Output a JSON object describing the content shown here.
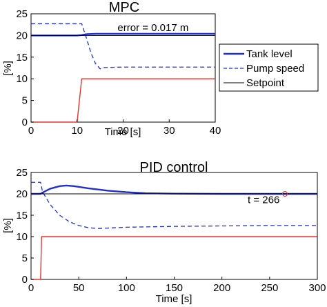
{
  "chart_data": [
    {
      "type": "line",
      "title": "MPC",
      "xlabel": "Time [s]",
      "ylabel": "[%]",
      "xlim": [
        0,
        40
      ],
      "ylim": [
        0,
        25
      ],
      "xticks": [
        "0",
        "10",
        "20",
        "30",
        "40"
      ],
      "yticks": [
        "0",
        "5",
        "10",
        "15",
        "20",
        "25"
      ],
      "grid": false,
      "legend": "right",
      "annotations": [
        {
          "text": "error = 0.017 m",
          "x": 26.5,
          "y": 21.0
        }
      ],
      "series": [
        {
          "name": "Tank level",
          "color": "#1f2fcc",
          "style": "solid-thick",
          "x": [
            0,
            10,
            11,
            12,
            14,
            20,
            30,
            40
          ],
          "y": [
            20,
            20,
            20.1,
            20.3,
            20.4,
            20.4,
            20.4,
            20.4
          ]
        },
        {
          "name": "Pump speed",
          "color": "#1f2fcc",
          "style": "dashed",
          "x": [
            0,
            11,
            12,
            13,
            14,
            15,
            16,
            20,
            30,
            40
          ],
          "y": [
            22.7,
            22.7,
            19.5,
            16.0,
            13.5,
            12.3,
            12.6,
            12.7,
            12.7,
            12.7
          ]
        },
        {
          "name": "Setpoint",
          "color": "#000000",
          "style": "solid-thin",
          "x": [
            0,
            40
          ],
          "y": [
            20,
            20
          ]
        },
        {
          "name": "",
          "color": "#e8302a",
          "style": "solid",
          "x": [
            0,
            10,
            11,
            40
          ],
          "y": [
            0,
            0,
            10,
            10
          ]
        }
      ]
    },
    {
      "type": "line",
      "title": "PID control",
      "xlabel": "Time [s]",
      "ylabel": "[%]",
      "xlim": [
        0,
        300
      ],
      "ylim": [
        0,
        25
      ],
      "xticks": [
        "0",
        "50",
        "100",
        "150",
        "200",
        "250",
        "300"
      ],
      "yticks": [
        "0",
        "5",
        "10",
        "15",
        "20",
        "25"
      ],
      "grid": false,
      "legend": "none",
      "annotations": [
        {
          "text": "t = 266",
          "x": 227,
          "y": 17.8,
          "marker_x": 266,
          "marker_y": 20.0
        }
      ],
      "series": [
        {
          "name": "Tank level",
          "color": "#1f2fcc",
          "style": "solid-thick",
          "x": [
            0,
            10,
            12,
            20,
            30,
            37,
            45,
            60,
            80,
            100,
            120,
            150,
            200,
            250,
            300
          ],
          "y": [
            20,
            20,
            20.3,
            21.2,
            21.8,
            21.95,
            21.8,
            21.3,
            20.75,
            20.4,
            20.15,
            20.05,
            20.0,
            20.0,
            20.0
          ]
        },
        {
          "name": "Pump speed",
          "color": "#1f2fcc",
          "style": "dashed",
          "x": [
            0,
            10,
            12,
            20,
            30,
            40,
            50,
            60,
            70,
            80,
            100,
            150,
            200,
            250,
            300
          ],
          "y": [
            22.7,
            22.7,
            20.5,
            17.5,
            15.0,
            13.5,
            12.6,
            12.1,
            11.9,
            12.0,
            12.2,
            12.4,
            12.5,
            12.6,
            12.6
          ]
        },
        {
          "name": "Setpoint",
          "color": "#000000",
          "style": "solid-thin",
          "x": [
            0,
            300
          ],
          "y": [
            20,
            20
          ]
        },
        {
          "name": "",
          "color": "#e8302a",
          "style": "solid",
          "x": [
            0,
            10,
            11,
            300
          ],
          "y": [
            0,
            0,
            10,
            10
          ]
        }
      ]
    }
  ]
}
